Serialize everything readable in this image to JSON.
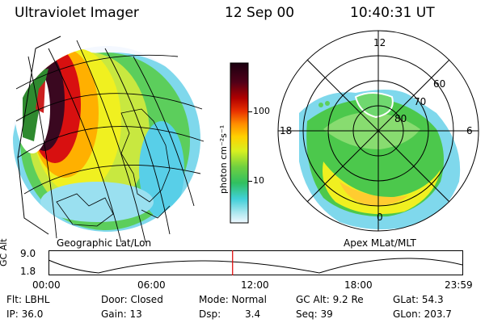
{
  "header": {
    "instrument": "Ultraviolet Imager",
    "date": "12 Sep 00",
    "time": "10:40:31 UT"
  },
  "left_panel": {
    "label": "Geographic Lat/Lon"
  },
  "right_panel": {
    "label": "Apex MLat/MLT",
    "mlt_labels": [
      "12",
      "18",
      "6",
      "0"
    ],
    "mlat_labels": [
      "60",
      "70",
      "80"
    ]
  },
  "colorbar": {
    "unit_label": "photon cm⁻²s⁻¹",
    "tick_labels": [
      "100",
      "10"
    ],
    "tick_values": [
      100,
      10
    ],
    "range": [
      2.5,
      500
    ],
    "scale": "log"
  },
  "altitude_plot": {
    "ylabel": "GC Alt",
    "y_ticks": [
      "9.0",
      "1.8"
    ],
    "x_ticks": [
      "00:00",
      "06:00",
      "12:00",
      "18:00",
      "23:59"
    ],
    "current_time_marker_hours": 10.675
  },
  "info": {
    "flt": "Flt: LBHL",
    "door": "Door: Closed",
    "mode": "Mode: Normal",
    "gc_alt": "GC Alt: 9.2 Re",
    "glat": "GLat:  54.3",
    "ip": "IP: 36.0",
    "gain": "Gain: 13",
    "dsp_label": "Dsp:",
    "dsp_value": "3.4",
    "seq": "Seq: 39",
    "glon": "GLon: 203.7"
  },
  "colors": {
    "marker": "#dd0000",
    "green": "#3ec43e",
    "yellow": "#e8e800",
    "cyan": "#40c8e0"
  }
}
